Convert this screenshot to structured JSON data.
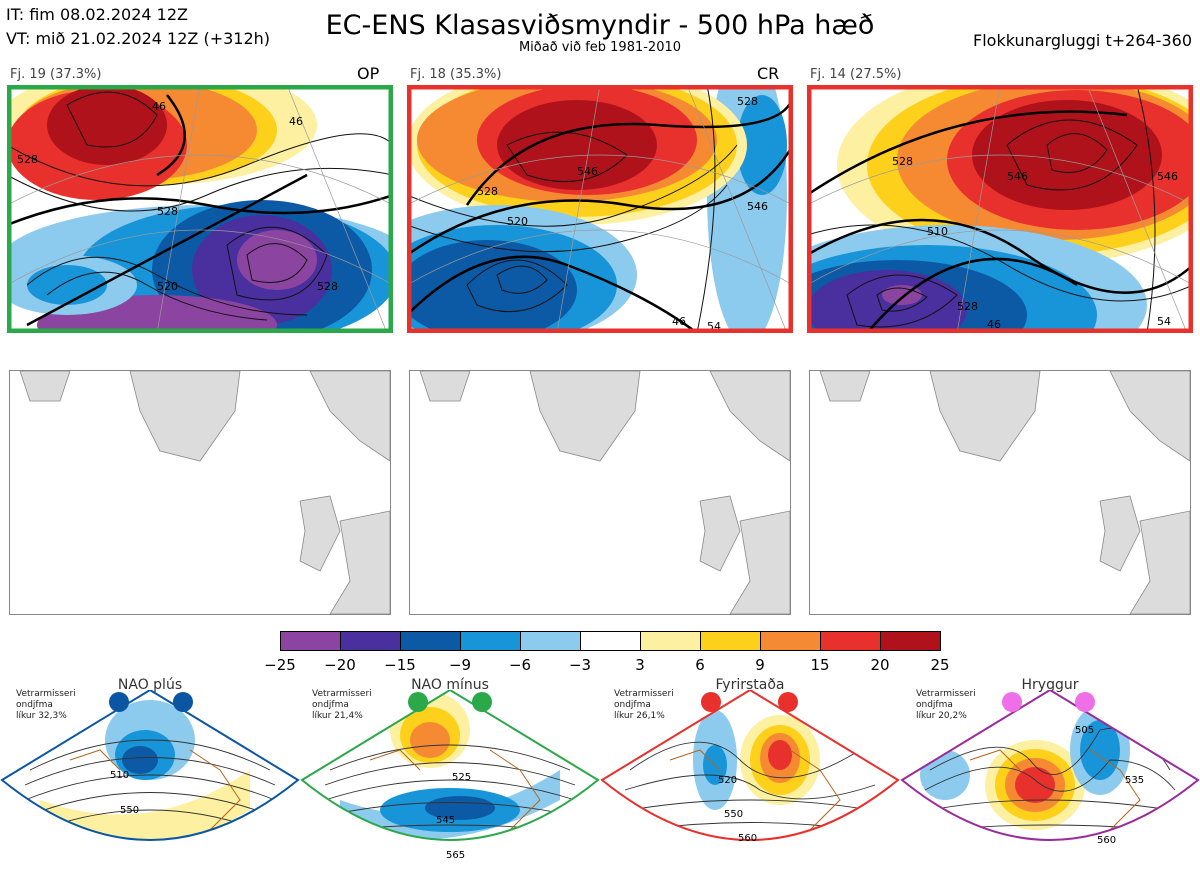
{
  "header": {
    "it": "IT: fim 08.02.2024 12Z",
    "vt": "VT: mið 21.02.2024 12Z  (+312h)",
    "title": "EC-ENS Klasasviðsmyndir - 500 hPa hæð",
    "subtitle": "Miðað við feb 1981-2010",
    "window": "Flokkunargluggi t+264-360"
  },
  "clusters": [
    {
      "label": "Fj. 19 (37.3%)",
      "tag": "OP",
      "border": "#2aa84a",
      "contours": [
        "46",
        "528",
        "528",
        "520",
        "528",
        "46"
      ]
    },
    {
      "label": "Fj. 18 (35.3%)",
      "tag": "CR",
      "border": "#e8312c",
      "contours": [
        "528",
        "520",
        "546",
        "528",
        "546",
        "46",
        "54"
      ]
    },
    {
      "label": "Fj. 14 (27.5%)",
      "tag": "",
      "border": "#e8312c",
      "contours": [
        "528",
        "546",
        "546",
        "510",
        "528",
        "46",
        "54"
      ]
    }
  ],
  "colorbar": {
    "colors": [
      "#8b44a0",
      "#4a2f9e",
      "#0c5aa6",
      "#1895d8",
      "#8ccbee",
      "#ffffff",
      "#fdf0a0",
      "#fdd11b",
      "#f58a33",
      "#e8312c",
      "#b0121b"
    ],
    "ticks": [
      "−25",
      "−20",
      "−15",
      "−9",
      "−6",
      "−3",
      "3",
      "6",
      "9",
      "15",
      "20",
      "25"
    ]
  },
  "regimes": [
    {
      "name": "NAO plús",
      "note": [
        "Vetrarmisseri",
        "ondjfma",
        "líkur 32,3%"
      ],
      "color": "#0b56a3",
      "contours": [
        "510",
        "550"
      ]
    },
    {
      "name": "NAO mínus",
      "note": [
        "Vetrarmisseri",
        "ondjfma",
        "líkur 21,4%"
      ],
      "color": "#2aa84a",
      "contours": [
        "525",
        "545",
        "565"
      ]
    },
    {
      "name": "Fyrirstaða",
      "note": [
        "Vetrarmisseri",
        "ondjfma",
        "líkur 26,1%"
      ],
      "color": "#e8312c",
      "contours": [
        "520",
        "550",
        "560"
      ]
    },
    {
      "name": "Hryggur",
      "note": [
        "Vetrarmisseri",
        "ondjfma",
        "líkur 20,2%"
      ],
      "color": "#ee6fe8",
      "contours": [
        "505",
        "535",
        "560"
      ]
    }
  ]
}
